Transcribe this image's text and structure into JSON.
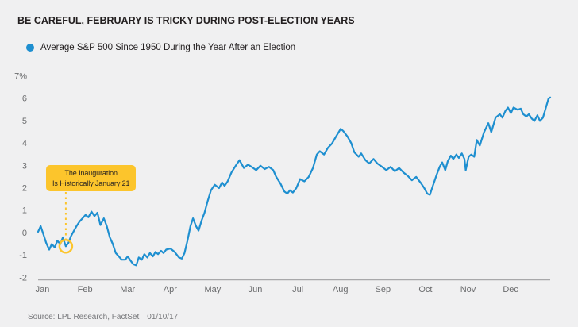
{
  "title": "BE CAREFUL, FEBRUARY IS TRICKY DURING POST-ELECTION YEARS",
  "legend": {
    "label": "Average S&P 500 Since 1950 During the Year After an Election"
  },
  "annotation": {
    "line1": "The Inauguration",
    "line2": "Is Historically January 21"
  },
  "source": {
    "label": "Source: LPL Research, FactSet",
    "date": "01/10/17"
  },
  "colors": {
    "background": "#f0f0f1",
    "line_blue": "#1e8fd0",
    "accent_yellow": "#fcc52c",
    "title_text": "#231f20",
    "axis_text": "#6b6c6e",
    "axis_line": "#a8a8aa"
  },
  "chart_data": {
    "type": "line",
    "title": "BE CAREFUL, FEBRUARY IS TRICKY DURING POST-ELECTION YEARS",
    "xlabel": "",
    "ylabel": "%",
    "ylim": [
      -2,
      7
    ],
    "grid": false,
    "legend_position": "top-left",
    "y_tick_labels": [
      "7%",
      "6",
      "5",
      "4",
      "3",
      "2",
      "1",
      "0",
      "-1",
      "-2"
    ],
    "y_tick_values": [
      7,
      6,
      5,
      4,
      3,
      2,
      1,
      0,
      -1,
      -2
    ],
    "x_categories": [
      "Jan",
      "Feb",
      "Mar",
      "Apr",
      "May",
      "Jun",
      "Jul",
      "Aug",
      "Sep",
      "Oct",
      "Nov",
      "Dec"
    ],
    "series": [
      {
        "name": "Average S&P 500 Since 1950 During the Year After an Election",
        "color": "#1e8fd0",
        "x_unit": "month (0 = Jan 1, 12 = Dec 31)",
        "y_unit": "percent",
        "points": [
          [
            0,
            0.05
          ],
          [
            0.06,
            0.3
          ],
          [
            0.13,
            -0.1
          ],
          [
            0.19,
            -0.45
          ],
          [
            0.26,
            -0.75
          ],
          [
            0.32,
            -0.5
          ],
          [
            0.39,
            -0.65
          ],
          [
            0.45,
            -0.35
          ],
          [
            0.52,
            -0.5
          ],
          [
            0.58,
            -0.2
          ],
          [
            0.65,
            -0.6
          ],
          [
            0.71,
            -0.45
          ],
          [
            0.77,
            -0.15
          ],
          [
            0.84,
            0.1
          ],
          [
            0.9,
            0.3
          ],
          [
            0.97,
            0.5
          ],
          [
            1.04,
            0.65
          ],
          [
            1.11,
            0.8
          ],
          [
            1.18,
            0.7
          ],
          [
            1.25,
            0.95
          ],
          [
            1.32,
            0.75
          ],
          [
            1.39,
            0.9
          ],
          [
            1.46,
            0.35
          ],
          [
            1.54,
            0.65
          ],
          [
            1.61,
            0.3
          ],
          [
            1.68,
            -0.2
          ],
          [
            1.75,
            -0.5
          ],
          [
            1.82,
            -0.9
          ],
          [
            1.89,
            -1.05
          ],
          [
            1.96,
            -1.2
          ],
          [
            2.04,
            -1.2
          ],
          [
            2.1,
            -1.05
          ],
          [
            2.17,
            -1.25
          ],
          [
            2.23,
            -1.4
          ],
          [
            2.3,
            -1.45
          ],
          [
            2.36,
            -1.1
          ],
          [
            2.43,
            -1.2
          ],
          [
            2.49,
            -0.95
          ],
          [
            2.56,
            -1.1
          ],
          [
            2.62,
            -0.9
          ],
          [
            2.69,
            -1.05
          ],
          [
            2.75,
            -0.85
          ],
          [
            2.81,
            -0.95
          ],
          [
            2.88,
            -0.8
          ],
          [
            2.94,
            -0.9
          ],
          [
            3,
            -0.75
          ],
          [
            3.1,
            -0.7
          ],
          [
            3.2,
            -0.85
          ],
          [
            3.3,
            -1.1
          ],
          [
            3.37,
            -1.15
          ],
          [
            3.43,
            -0.9
          ],
          [
            3.5,
            -0.35
          ],
          [
            3.57,
            0.3
          ],
          [
            3.63,
            0.65
          ],
          [
            3.7,
            0.3
          ],
          [
            3.76,
            0.1
          ],
          [
            3.83,
            0.55
          ],
          [
            3.9,
            0.9
          ],
          [
            3.97,
            1.4
          ],
          [
            4.05,
            1.9
          ],
          [
            4.14,
            2.15
          ],
          [
            4.24,
            2.0
          ],
          [
            4.31,
            2.25
          ],
          [
            4.37,
            2.1
          ],
          [
            4.44,
            2.3
          ],
          [
            4.53,
            2.7
          ],
          [
            4.63,
            3.0
          ],
          [
            4.72,
            3.25
          ],
          [
            4.82,
            2.9
          ],
          [
            4.92,
            3.05
          ],
          [
            5,
            2.95
          ],
          [
            5.11,
            2.8
          ],
          [
            5.21,
            3.0
          ],
          [
            5.31,
            2.85
          ],
          [
            5.41,
            2.95
          ],
          [
            5.51,
            2.8
          ],
          [
            5.58,
            2.5
          ],
          [
            5.68,
            2.2
          ],
          [
            5.77,
            1.85
          ],
          [
            5.84,
            1.75
          ],
          [
            5.9,
            1.9
          ],
          [
            5.97,
            1.8
          ],
          [
            6.05,
            2.0
          ],
          [
            6.14,
            2.4
          ],
          [
            6.24,
            2.3
          ],
          [
            6.34,
            2.5
          ],
          [
            6.44,
            2.9
          ],
          [
            6.53,
            3.5
          ],
          [
            6.6,
            3.65
          ],
          [
            6.7,
            3.5
          ],
          [
            6.79,
            3.8
          ],
          [
            6.89,
            4.0
          ],
          [
            6.98,
            4.3
          ],
          [
            7.09,
            4.65
          ],
          [
            7.15,
            4.55
          ],
          [
            7.25,
            4.3
          ],
          [
            7.34,
            4.0
          ],
          [
            7.41,
            3.6
          ],
          [
            7.51,
            3.4
          ],
          [
            7.57,
            3.55
          ],
          [
            7.67,
            3.25
          ],
          [
            7.76,
            3.1
          ],
          [
            7.86,
            3.3
          ],
          [
            7.95,
            3.1
          ],
          [
            8.06,
            2.95
          ],
          [
            8.16,
            2.8
          ],
          [
            8.26,
            2.95
          ],
          [
            8.36,
            2.75
          ],
          [
            8.46,
            2.9
          ],
          [
            8.56,
            2.7
          ],
          [
            8.66,
            2.55
          ],
          [
            8.76,
            2.35
          ],
          [
            8.86,
            2.5
          ],
          [
            8.96,
            2.25
          ],
          [
            9.05,
            2.0
          ],
          [
            9.12,
            1.75
          ],
          [
            9.18,
            1.7
          ],
          [
            9.25,
            2.1
          ],
          [
            9.34,
            2.6
          ],
          [
            9.41,
            2.95
          ],
          [
            9.47,
            3.15
          ],
          [
            9.54,
            2.8
          ],
          [
            9.6,
            3.2
          ],
          [
            9.67,
            3.45
          ],
          [
            9.73,
            3.3
          ],
          [
            9.8,
            3.5
          ],
          [
            9.86,
            3.35
          ],
          [
            9.93,
            3.55
          ],
          [
            9.99,
            3.3
          ],
          [
            10.02,
            2.8
          ],
          [
            10.09,
            3.4
          ],
          [
            10.15,
            3.5
          ],
          [
            10.22,
            3.4
          ],
          [
            10.28,
            4.15
          ],
          [
            10.35,
            3.9
          ],
          [
            10.45,
            4.5
          ],
          [
            10.55,
            4.9
          ],
          [
            10.62,
            4.5
          ],
          [
            10.72,
            5.15
          ],
          [
            10.82,
            5.3
          ],
          [
            10.88,
            5.15
          ],
          [
            10.95,
            5.45
          ],
          [
            11.01,
            5.6
          ],
          [
            11.08,
            5.35
          ],
          [
            11.14,
            5.6
          ],
          [
            11.24,
            5.5
          ],
          [
            11.31,
            5.55
          ],
          [
            11.37,
            5.3
          ],
          [
            11.44,
            5.2
          ],
          [
            11.5,
            5.3
          ],
          [
            11.57,
            5.1
          ],
          [
            11.63,
            5.0
          ],
          [
            11.7,
            5.25
          ],
          [
            11.76,
            5.0
          ],
          [
            11.83,
            5.15
          ],
          [
            11.9,
            5.6
          ],
          [
            11.96,
            6.0
          ],
          [
            12,
            6.05
          ]
        ]
      }
    ],
    "marker": {
      "x": 0.65,
      "y": -0.6,
      "note": "The Inauguration Is Historically January 21"
    }
  }
}
